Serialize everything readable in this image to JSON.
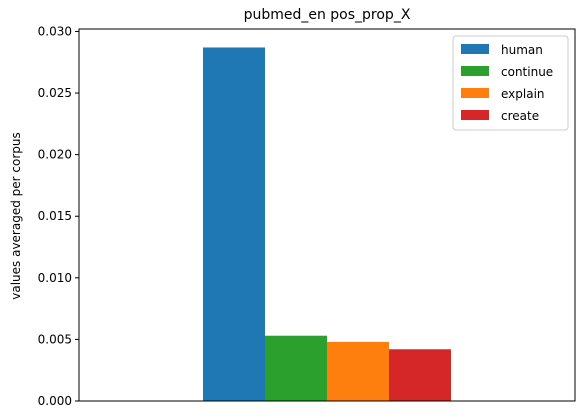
{
  "chart_data": {
    "type": "bar",
    "title": "pubmed_en pos_prop_X",
    "xlabel": "",
    "ylabel": "values averaged per corpus",
    "ylim": [
      0,
      0.0302
    ],
    "yticks": [
      0.0,
      0.005,
      0.01,
      0.015,
      0.02,
      0.025,
      0.03
    ],
    "ytick_labels": [
      "0.000",
      "0.005",
      "0.010",
      "0.015",
      "0.020",
      "0.025",
      "0.030"
    ],
    "grid": false,
    "legend_position": "top-right",
    "series": [
      {
        "name": "human",
        "value": 0.0287,
        "color": "#1f77b4"
      },
      {
        "name": "continue",
        "value": 0.0053,
        "color": "#2ca02c"
      },
      {
        "name": "explain",
        "value": 0.0048,
        "color": "#ff7f0e"
      },
      {
        "name": "create",
        "value": 0.0042,
        "color": "#d62728"
      }
    ]
  }
}
